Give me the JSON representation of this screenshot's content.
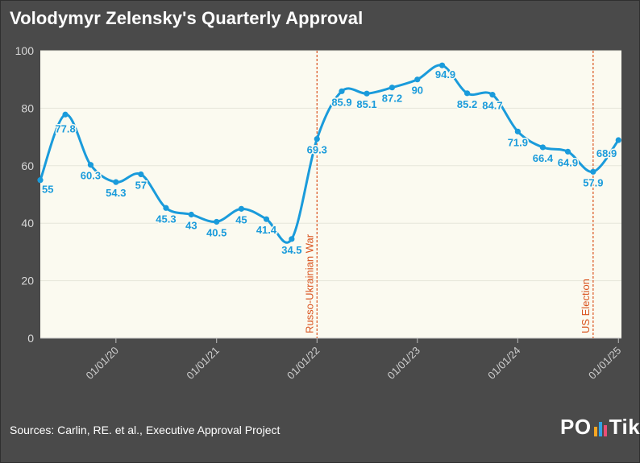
{
  "title": "Volodymyr Zelensky's Quarterly Approval",
  "source": "Sources: Carlin, RE. et al., Executive Approval Project",
  "logo": {
    "left": "PO",
    "right": "Tik",
    "bar_colors": [
      "#f5a623",
      "#2fa4e7",
      "#e94e77"
    ]
  },
  "colors": {
    "background": "#4a4a4a",
    "plot_bg": "#fbfaf0",
    "line": "#1a9bdb",
    "label": "#1a9bdb",
    "event": "#d9531e",
    "axis_text": "#555555"
  },
  "chart_data": {
    "type": "line",
    "title": "Volodymyr Zelensky's Quarterly Approval",
    "xlabel": "",
    "ylabel": "",
    "ylim": [
      0,
      100
    ],
    "yticks": [
      0,
      20,
      40,
      60,
      80,
      100
    ],
    "xlim": [
      "2019-04-01",
      "2025-01-12"
    ],
    "xticks": [
      {
        "date": "2020-01-01",
        "label": "01/01/20"
      },
      {
        "date": "2021-01-01",
        "label": "01/01/21"
      },
      {
        "date": "2022-01-01",
        "label": "01/01/22"
      },
      {
        "date": "2023-01-01",
        "label": "01/01/23"
      },
      {
        "date": "2024-01-01",
        "label": "01/01/24"
      },
      {
        "date": "2025-01-01",
        "label": "01/01/25"
      }
    ],
    "series": [
      {
        "name": "Approval",
        "points": [
          {
            "date": "2019-04-01",
            "value": 55,
            "label": "55"
          },
          {
            "date": "2019-07-01",
            "value": 77.8,
            "label": "77.8"
          },
          {
            "date": "2019-10-01",
            "value": 60.3,
            "label": "60.3"
          },
          {
            "date": "2020-01-01",
            "value": 54.3,
            "label": "54.3"
          },
          {
            "date": "2020-04-01",
            "value": 57,
            "label": "57"
          },
          {
            "date": "2020-07-01",
            "value": 45.3,
            "label": "45.3"
          },
          {
            "date": "2020-10-01",
            "value": 43,
            "label": "43"
          },
          {
            "date": "2021-01-01",
            "value": 40.5,
            "label": "40.5"
          },
          {
            "date": "2021-04-01",
            "value": 45,
            "label": "45"
          },
          {
            "date": "2021-07-01",
            "value": 41.4,
            "label": "41.4"
          },
          {
            "date": "2021-10-01",
            "value": 34.5,
            "label": "34.5"
          },
          {
            "date": "2022-01-01",
            "value": 69.3,
            "label": "69.3"
          },
          {
            "date": "2022-04-01",
            "value": 85.9,
            "label": "85.9"
          },
          {
            "date": "2022-07-01",
            "value": 85.1,
            "label": "85.1"
          },
          {
            "date": "2022-10-01",
            "value": 87.2,
            "label": "87.2"
          },
          {
            "date": "2023-01-01",
            "value": 90,
            "label": "90"
          },
          {
            "date": "2023-04-01",
            "value": 94.9,
            "label": "94.9"
          },
          {
            "date": "2023-07-01",
            "value": 85.2,
            "label": "85.2"
          },
          {
            "date": "2023-10-01",
            "value": 84.7,
            "label": "84.7"
          },
          {
            "date": "2024-01-01",
            "value": 71.9,
            "label": "71.9"
          },
          {
            "date": "2024-04-01",
            "value": 66.4,
            "label": "66.4"
          },
          {
            "date": "2024-07-01",
            "value": 64.9,
            "label": "64.9"
          },
          {
            "date": "2024-10-01",
            "value": 57.9,
            "label": "57.9"
          },
          {
            "date": "2025-01-01",
            "value": 68.9,
            "label": "68.9"
          }
        ]
      }
    ],
    "events": [
      {
        "date": "2022-01-01",
        "label": "Russo-Ukrainian War"
      },
      {
        "date": "2024-10-01",
        "label": "US Election"
      }
    ]
  }
}
